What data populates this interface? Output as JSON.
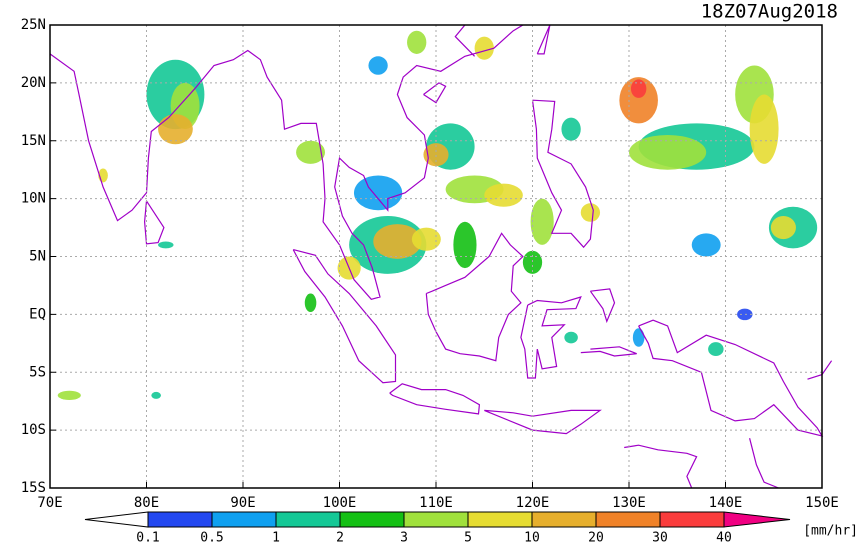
{
  "title": "18Z07Aug2018",
  "lat_labels": [
    "25N",
    "20N",
    "15N",
    "10N",
    "5N",
    "EQ",
    "5S",
    "10S",
    "15S"
  ],
  "lon_labels": [
    "70E",
    "80E",
    "90E",
    "100E",
    "110E",
    "120E",
    "130E",
    "140E",
    "150E"
  ],
  "colorbar": {
    "levels": [
      0.1,
      0.5,
      1,
      2,
      3,
      5,
      10,
      20,
      30,
      40
    ],
    "colors": [
      "#ffffff",
      "#2348f0",
      "#0fa0f0",
      "#14c896",
      "#14c014",
      "#a0e13c",
      "#e6dc32",
      "#e6af2d",
      "#f08228",
      "#fa3c3c",
      "#f00082"
    ],
    "unit": "[mm/hr]"
  }
}
